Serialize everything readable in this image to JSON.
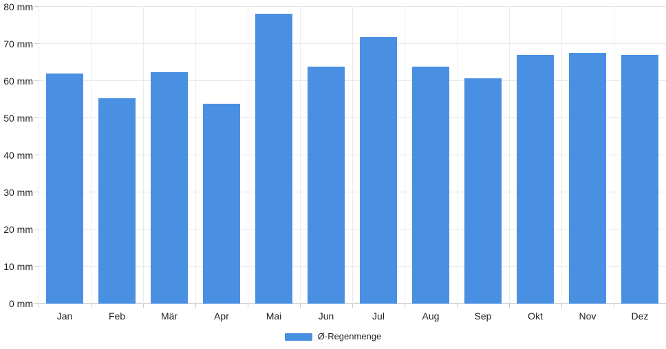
{
  "chart_data": {
    "type": "bar",
    "categories": [
      "Jan",
      "Feb",
      "Mär",
      "Apr",
      "Mai",
      "Jun",
      "Jul",
      "Aug",
      "Sep",
      "Okt",
      "Nov",
      "Dez"
    ],
    "series": [
      {
        "name": "Ø-Regenmenge",
        "color": "#4a90e2",
        "values": [
          62,
          55.3,
          62.4,
          53.8,
          78.2,
          63.8,
          71.8,
          63.9,
          60.8,
          67.1,
          67.6,
          67.1
        ]
      }
    ],
    "title": "",
    "xlabel": "",
    "ylabel": "",
    "ylim": [
      0,
      80
    ],
    "ytick_step": 10,
    "ytick_labels": [
      "0 mm",
      "10 mm",
      "20 mm",
      "30 mm",
      "40 mm",
      "50 mm",
      "60 mm",
      "70 mm",
      "80 mm"
    ],
    "grid": true,
    "legend_position": "bottom"
  },
  "legend": {
    "label": "Ø-Regenmenge"
  },
  "colors": {
    "bar": "#4a90e2",
    "grid_h": "#e6e6e6",
    "grid_v": "#ebebeb",
    "axis": "#cccccc",
    "text": "#222222"
  }
}
